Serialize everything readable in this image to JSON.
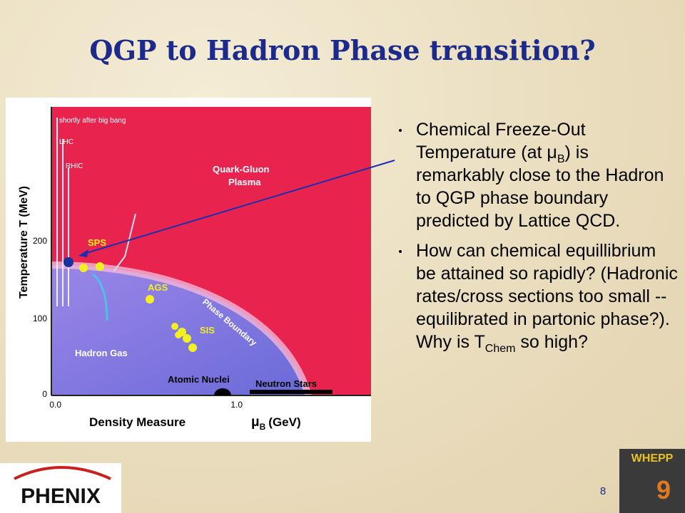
{
  "header": {
    "title": "QGP to Hadron Phase transition?"
  },
  "figure": {
    "labels": {
      "early": "shortly after big bang",
      "lhc": "LHC",
      "rhic": "RHIC",
      "qgp_1": "Quark-Gluon",
      "qgp_2": "Plasma",
      "sps": "SPS",
      "ags": "AGS",
      "sis": "SIS",
      "boundary": "Phase Boundary",
      "hadron_gas": "Hadron Gas",
      "nuclei": "Atomic Nuclei",
      "neutron": "Neutron Stars"
    },
    "y_axis": {
      "title": "Temperature T (MeV)",
      "ticks": [
        "200",
        "100",
        "0"
      ]
    },
    "x_axis": {
      "title": "Density Measure",
      "symbol": "μ",
      "symbol_sub": "B",
      "unit": "(GeV)",
      "ticks": [
        "0.0",
        "1.0"
      ]
    }
  },
  "bullets": [
    {
      "parts": [
        "Chemical Freeze-Out Temperature (at ",
        "μ",
        "B",
        ") is remarkably close to the Hadron to QGP phase boundary predicted by Lattice QCD."
      ]
    },
    {
      "parts": [
        "How can chemical equillibrium be attained so rapidly? (Hadronic rates/cross sections too small -- equilibrated in partonic phase?). Why is T",
        "Chem",
        " so high?"
      ]
    }
  ],
  "footer": {
    "page_number": "8",
    "logo_left": "PHENIX",
    "logo_right_top": "WHEPP",
    "logo_right_number": "9"
  }
}
